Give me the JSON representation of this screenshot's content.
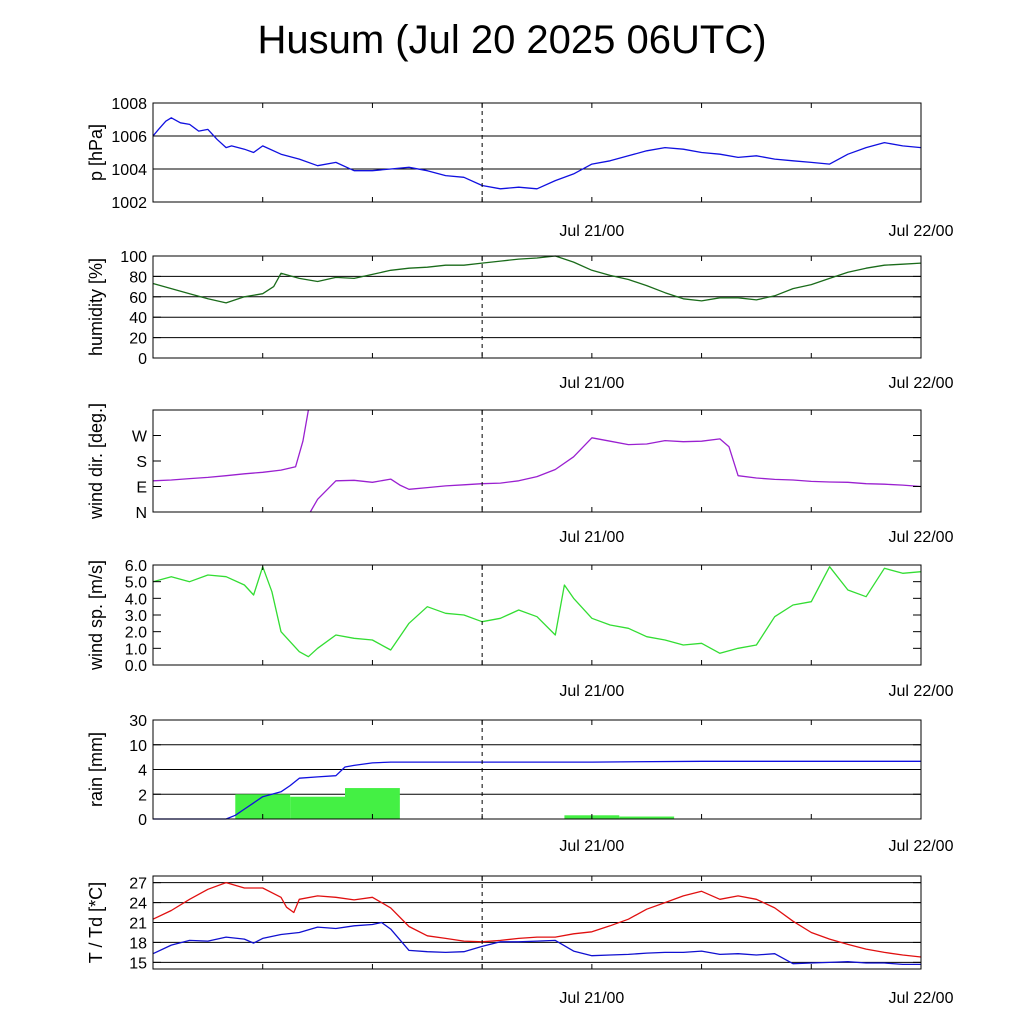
{
  "title": "Husum (Jul 20 2025 06UTC)",
  "colors": {
    "pressure": "#1010e0",
    "humidity": "#1a6b1a",
    "wind_dir": "#9a20d0",
    "wind_speed": "#33dd33",
    "rain_total": "#1010e0",
    "rain_bars": "#44f044",
    "temperature": "#e01010",
    "dewpoint": "#1010d0"
  },
  "chart_data": [
    {
      "type": "line",
      "ylabel": "p [hPa]",
      "x_ticks": [
        "Jul 21/00",
        "Jul 22/00"
      ],
      "x_range_hours": [
        0,
        42
      ],
      "ylim": [
        1002,
        1008
      ],
      "y_ticks": [
        "1008",
        "1006",
        "1004",
        "1002"
      ],
      "grid": true,
      "series": [
        {
          "color_key": "pressure",
          "x": [
            0,
            0.3,
            0.7,
            1,
            1.5,
            2,
            2.5,
            3,
            3.5,
            4,
            4.3,
            5,
            5.5,
            6,
            7,
            8,
            9,
            10,
            11,
            12,
            13,
            14,
            15,
            16,
            17,
            18,
            19,
            20,
            21,
            22,
            23,
            24,
            25,
            26,
            27,
            28,
            29,
            30,
            31,
            32,
            33,
            34,
            35,
            36,
            37,
            38,
            39,
            40,
            41,
            42
          ],
          "y": [
            1006,
            1006.4,
            1006.9,
            1007.1,
            1006.8,
            1006.7,
            1006.3,
            1006.4,
            1005.8,
            1005.3,
            1005.4,
            1005.2,
            1005.0,
            1005.4,
            1004.9,
            1004.6,
            1004.2,
            1004.4,
            1003.9,
            1003.9,
            1004.0,
            1004.1,
            1003.9,
            1003.6,
            1003.5,
            1003.0,
            1002.8,
            1002.9,
            1002.8,
            1003.3,
            1003.7,
            1004.3,
            1004.5,
            1004.8,
            1005.1,
            1005.3,
            1005.2,
            1005.0,
            1004.9,
            1004.7,
            1004.8,
            1004.6,
            1004.5,
            1004.4,
            1004.3,
            1004.9,
            1005.3,
            1005.6,
            1005.4,
            1005.3
          ]
        }
      ]
    },
    {
      "type": "line",
      "ylabel": "humidity [%]",
      "x_ticks": [
        "Jul 21/00",
        "Jul 22/00"
      ],
      "x_range_hours": [
        0,
        42
      ],
      "ylim": [
        0,
        100
      ],
      "y_ticks": [
        "100",
        "80",
        "60",
        "40",
        "20",
        "0"
      ],
      "grid": true,
      "series": [
        {
          "color_key": "humidity",
          "x": [
            0,
            1,
            2,
            3,
            4,
            5,
            6,
            6.6,
            7,
            8,
            9,
            10,
            11,
            12,
            13,
            14,
            15,
            16,
            17,
            18,
            19,
            20,
            21,
            22,
            23,
            24,
            25,
            26,
            27,
            28,
            29,
            30,
            31,
            32,
            33,
            34,
            35,
            36,
            37,
            38,
            39,
            40,
            41,
            42
          ],
          "y": [
            73,
            68,
            63,
            58,
            54,
            60,
            63,
            70,
            83,
            78,
            75,
            79,
            78,
            82,
            86,
            88,
            89,
            91,
            91,
            93,
            95,
            97,
            98,
            100,
            94,
            86,
            81,
            77,
            71,
            64,
            58,
            56,
            59,
            59,
            57,
            61,
            68,
            72,
            78,
            84,
            88,
            91,
            92,
            93
          ]
        }
      ]
    },
    {
      "type": "line",
      "ylabel": "wind dir. [deg.]",
      "x_ticks": [
        "Jul 21/00",
        "Jul 22/00"
      ],
      "x_range_hours": [
        0,
        42
      ],
      "ylim": [
        0,
        360
      ],
      "y_ticks": [
        "W",
        "S",
        "E",
        "N"
      ],
      "grid": false,
      "series": [
        {
          "color_key": "wind_dir",
          "x": [
            0,
            1,
            2,
            3,
            4,
            5,
            6,
            7,
            7.8,
            8.2,
            8.5
          ],
          "y": [
            110,
            113,
            118,
            122,
            128,
            135,
            140,
            148,
            160,
            250,
            360
          ]
        },
        {
          "color_key": "wind_dir",
          "x": [
            8.6,
            9,
            10,
            11,
            12,
            13,
            13.5,
            14,
            15,
            16,
            17,
            18,
            19,
            20,
            21,
            22,
            23,
            24,
            25,
            26,
            27,
            28,
            29,
            30,
            31,
            31.5,
            32,
            33,
            34,
            35,
            36,
            37,
            38,
            39,
            40,
            41,
            42
          ],
          "y": [
            0,
            45,
            110,
            112,
            105,
            116,
            95,
            80,
            86,
            92,
            96,
            100,
            102,
            110,
            125,
            150,
            195,
            262,
            250,
            238,
            240,
            252,
            248,
            250,
            258,
            230,
            128,
            120,
            115,
            113,
            108,
            106,
            105,
            100,
            98,
            95,
            90
          ]
        }
      ]
    },
    {
      "type": "line",
      "ylabel": "wind sp. [m/s]",
      "x_ticks": [
        "Jul 21/00",
        "Jul 22/00"
      ],
      "x_range_hours": [
        0,
        42
      ],
      "ylim": [
        0,
        6
      ],
      "y_ticks": [
        "6.0",
        "5.0",
        "4.0",
        "3.0",
        "2.0",
        "1.0",
        "0.0"
      ],
      "grid": false,
      "series": [
        {
          "color_key": "wind_speed",
          "x": [
            0,
            1,
            2,
            3,
            4,
            5,
            5.5,
            6,
            6.5,
            7,
            8,
            8.5,
            9,
            10,
            11,
            12,
            13,
            14,
            15,
            16,
            17,
            18,
            19,
            20,
            21,
            22,
            22.5,
            23,
            24,
            25,
            26,
            27,
            28,
            29,
            30,
            31,
            32,
            33,
            34,
            35,
            36,
            37,
            38,
            39,
            40,
            41,
            42
          ],
          "y": [
            5.0,
            5.3,
            5.0,
            5.4,
            5.3,
            4.8,
            4.2,
            5.9,
            4.4,
            2.0,
            0.8,
            0.5,
            1.0,
            1.8,
            1.6,
            1.5,
            0.9,
            2.5,
            3.5,
            3.1,
            3.0,
            2.6,
            2.8,
            3.3,
            2.9,
            1.8,
            4.8,
            4.0,
            2.8,
            2.4,
            2.2,
            1.7,
            1.5,
            1.2,
            1.3,
            0.7,
            1.0,
            1.2,
            2.9,
            3.6,
            3.8,
            5.9,
            4.5,
            4.1,
            5.8,
            5.5,
            5.6
          ]
        }
      ]
    },
    {
      "type": "bar",
      "ylabel": "rain [mm]",
      "x_ticks": [
        "Jul 21/00",
        "Jul 22/00"
      ],
      "x_range_hours": [
        0,
        42
      ],
      "y_ticks": [
        "30",
        "10",
        "4",
        "2",
        "0"
      ],
      "grid": true,
      "bars": {
        "color_key": "rain_bars",
        "x_start": [
          4.5,
          7.5,
          10.5,
          22.5,
          25.5
        ],
        "x_end": [
          7.5,
          10.5,
          13.5,
          25.5,
          28.5
        ],
        "values": [
          2.0,
          1.8,
          2.5,
          0.3,
          0.2
        ]
      },
      "series": [
        {
          "color_key": "rain_total",
          "x": [
            0,
            4,
            4.5,
            5,
            5.5,
            6,
            6.5,
            7,
            7.5,
            8,
            9,
            10,
            10.5,
            11,
            12,
            13,
            18,
            24,
            30,
            36,
            42
          ],
          "y": [
            0,
            0,
            0.3,
            0.8,
            1.3,
            1.8,
            2.0,
            2.2,
            2.7,
            3.3,
            3.4,
            3.5,
            4.6,
            5.0,
            5.6,
            5.8,
            5.8,
            5.8,
            6.0,
            6.0,
            6.0
          ]
        }
      ]
    },
    {
      "type": "line",
      "ylabel": "T / Td [*C]",
      "x_ticks": [
        "Jul 21/00",
        "Jul 22/00"
      ],
      "x_range_hours": [
        0,
        42
      ],
      "ylim": [
        14,
        28
      ],
      "y_ticks": [
        "27",
        "24",
        "21",
        "18",
        "15"
      ],
      "grid": true,
      "series": [
        {
          "name": "T",
          "color_key": "temperature",
          "x": [
            0,
            1,
            2,
            3,
            4,
            5,
            6,
            7,
            7.3,
            7.7,
            8,
            9,
            10,
            11,
            12,
            13,
            14,
            15,
            16,
            17,
            18,
            19,
            20,
            21,
            22,
            23,
            24,
            25,
            26,
            27,
            28,
            29,
            30,
            31,
            32,
            33,
            34,
            35,
            36,
            37,
            38,
            39,
            40,
            41,
            42
          ],
          "y": [
            21.5,
            22.8,
            24.5,
            26.0,
            27.0,
            26.2,
            26.2,
            24.8,
            23.3,
            22.5,
            24.5,
            25.0,
            24.8,
            24.4,
            24.8,
            23.2,
            20.4,
            19.0,
            18.6,
            18.2,
            18.1,
            18.3,
            18.6,
            18.8,
            18.8,
            19.3,
            19.6,
            20.5,
            21.5,
            23.0,
            24.0,
            25.0,
            25.7,
            24.5,
            25.0,
            24.5,
            23.2,
            21.2,
            19.5,
            18.5,
            17.7,
            17.0,
            16.5,
            16.1,
            15.8
          ]
        },
        {
          "name": "Td",
          "color_key": "dewpoint",
          "x": [
            0,
            1,
            2,
            3,
            4,
            5,
            5.5,
            6,
            7,
            8,
            9,
            10,
            11,
            12,
            12.5,
            13,
            14,
            15,
            16,
            17,
            18,
            19,
            20,
            21,
            22,
            23,
            24,
            25,
            26,
            27,
            28,
            29,
            30,
            31,
            32,
            33,
            34,
            35,
            36,
            37,
            38,
            39,
            40,
            41,
            42
          ],
          "y": [
            16.3,
            17.6,
            18.3,
            18.2,
            18.8,
            18.5,
            17.9,
            18.6,
            19.2,
            19.5,
            20.3,
            20.1,
            20.5,
            20.7,
            21.0,
            20.0,
            16.8,
            16.6,
            16.5,
            16.6,
            17.4,
            18.1,
            18.1,
            18.2,
            18.3,
            16.7,
            16.0,
            16.1,
            16.2,
            16.4,
            16.5,
            16.5,
            16.7,
            16.2,
            16.3,
            16.1,
            16.3,
            14.8,
            14.9,
            15.0,
            15.1,
            14.9,
            14.9,
            14.7,
            14.7
          ]
        }
      ]
    }
  ]
}
